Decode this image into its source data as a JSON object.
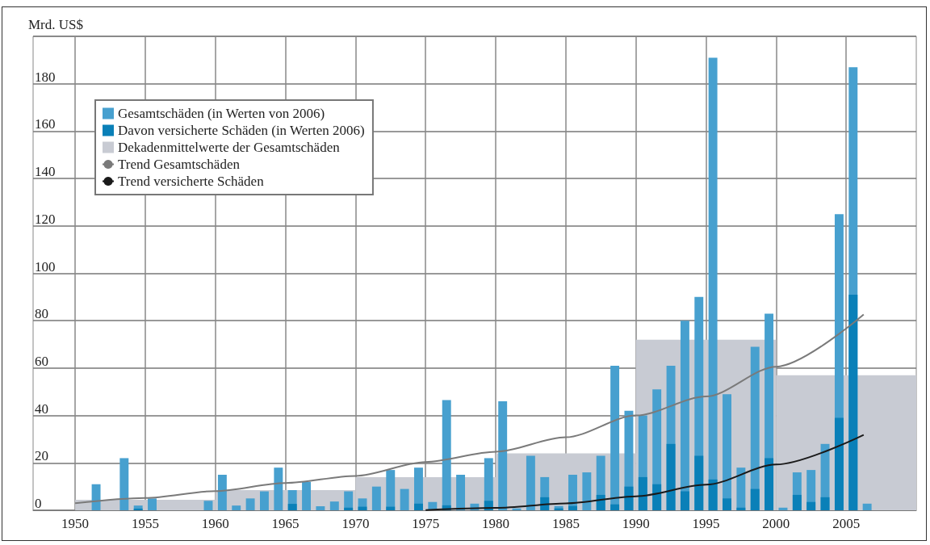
{
  "chart_data": {
    "type": "bar",
    "ylabel": "Mrd. US$",
    "xlim": [
      "1947",
      "2010"
    ],
    "xticks": [
      {
        "value": "1950",
        "label": "1950"
      },
      {
        "value": "1955",
        "label": "1955"
      },
      {
        "value": "1960",
        "label": "1960"
      },
      {
        "value": "1965",
        "label": "1965"
      },
      {
        "value": "1970",
        "label": "1970"
      },
      {
        "value": "1975",
        "label": "1975"
      },
      {
        "value": "1980",
        "label": "1980"
      },
      {
        "value": "1985",
        "label": "1985"
      },
      {
        "value": "1990",
        "label": "1990"
      },
      {
        "value": "1995",
        "label": "1995"
      },
      {
        "value": "2000",
        "label": "2000"
      },
      {
        "value": "2005",
        "label": "2005"
      }
    ],
    "series": [
      {
        "name": "Gesamtschäden (in Werten von 2006)",
        "color": "#47a0cf",
        "x": [
          "1951-07",
          "1953-07",
          "1954-07",
          "1955-07",
          "1959-07",
          "1960-07",
          "1961-07",
          "1962-07",
          "1963-07",
          "1964-07",
          "1965-07",
          "1966-07",
          "1967-07",
          "1968-07",
          "1969-07",
          "1970-07",
          "1971-07",
          "1972-07",
          "1973-07",
          "1974-07",
          "1975-07",
          "1976-07",
          "1977-07",
          "1978-07",
          "1979-07",
          "1980-07",
          "1981-07",
          "1982-07",
          "1983-07",
          "1984-07",
          "1985-07",
          "1986-07",
          "1987-07",
          "1988-07",
          "1989-07",
          "1990-07",
          "1991-07",
          "1992-07",
          "1993-07",
          "1994-07",
          "1995-07",
          "1996-07",
          "1997-07",
          "1998-07",
          "1999-07",
          "2000-07",
          "2001-07",
          "2002-07",
          "2003-07",
          "2004-07",
          "2005-07",
          "2006-07"
        ],
        "values": [
          11,
          22,
          2,
          5,
          4,
          15,
          2,
          5,
          8,
          18,
          8.5,
          12,
          1.7,
          3.7,
          8,
          5,
          10,
          17,
          9,
          18,
          3.5,
          46.5,
          15,
          2.8,
          22,
          46,
          0.8,
          23,
          14,
          1.8,
          15,
          16,
          23,
          61,
          42,
          40,
          51,
          61,
          80,
          90,
          191,
          49,
          18,
          69,
          83,
          1.1,
          16,
          17,
          28,
          125,
          187,
          2.8
        ]
      },
      {
        "name": "Davon versicherte Schäden (in Werten 2006)",
        "color": "#0a80b8",
        "x": [
          "1954-07",
          "1965-07",
          "1969-07",
          "1970-07",
          "1972-07",
          "1974-07",
          "1976-07",
          "1979-07",
          "1983-07",
          "1984-07",
          "1985-07",
          "1987-07",
          "1988-07",
          "1989-07",
          "1990-07",
          "1991-07",
          "1992-07",
          "1993-07",
          "1994-07",
          "1995-07",
          "1996-07",
          "1997-07",
          "1998-07",
          "1999-07",
          "2001-07",
          "2002-07",
          "2003-07",
          "2004-07",
          "2005-07"
        ],
        "values": [
          0.7,
          2.7,
          1.1,
          1.5,
          1.5,
          2.8,
          2.1,
          4,
          5.5,
          0.8,
          1.8,
          6.5,
          2.5,
          10,
          14,
          11,
          28,
          8,
          23,
          13,
          5,
          1.1,
          9,
          22,
          6.5,
          3.5,
          5.5,
          39,
          91
        ]
      },
      {
        "name": "Dekadenmittelwerte der Gesamtschäden",
        "color": "#c8cbd3",
        "x": [
          "1955",
          "1965",
          "1975",
          "1985",
          "1995",
          "2005"
        ],
        "values": [
          4.4,
          8.5,
          14,
          24,
          72,
          57
        ]
      },
      {
        "name": "Trend Gesamtschäden",
        "type": "line",
        "color": "#7a7a7a",
        "x": [
          "1950",
          "1955",
          "1960",
          "1965",
          "1970",
          "1975",
          "1980",
          "1985",
          "1990",
          "1995",
          "2000",
          "2006-04"
        ],
        "values": [
          3,
          5.2,
          8.1,
          11.5,
          14.5,
          20.4,
          24.7,
          30.8,
          40,
          48,
          60.6,
          82.6
        ]
      },
      {
        "name": "Trend versicherte Schäden",
        "type": "line",
        "color": "#1a1a1a",
        "x": [
          "1975",
          "1980",
          "1985",
          "1990",
          "1995",
          "2000",
          "2006-04"
        ],
        "values": [
          0.1,
          1,
          2.9,
          5.9,
          10.8,
          19.3,
          31.8
        ]
      }
    ],
    "ylim": [
      0,
      200
    ],
    "yticks": [
      0,
      20,
      40,
      60,
      80,
      100,
      120,
      140,
      160,
      180,
      {
        "value": 200,
        "label": null
      }
    ],
    "grid": true,
    "legend": "top left",
    "marker": "none"
  }
}
